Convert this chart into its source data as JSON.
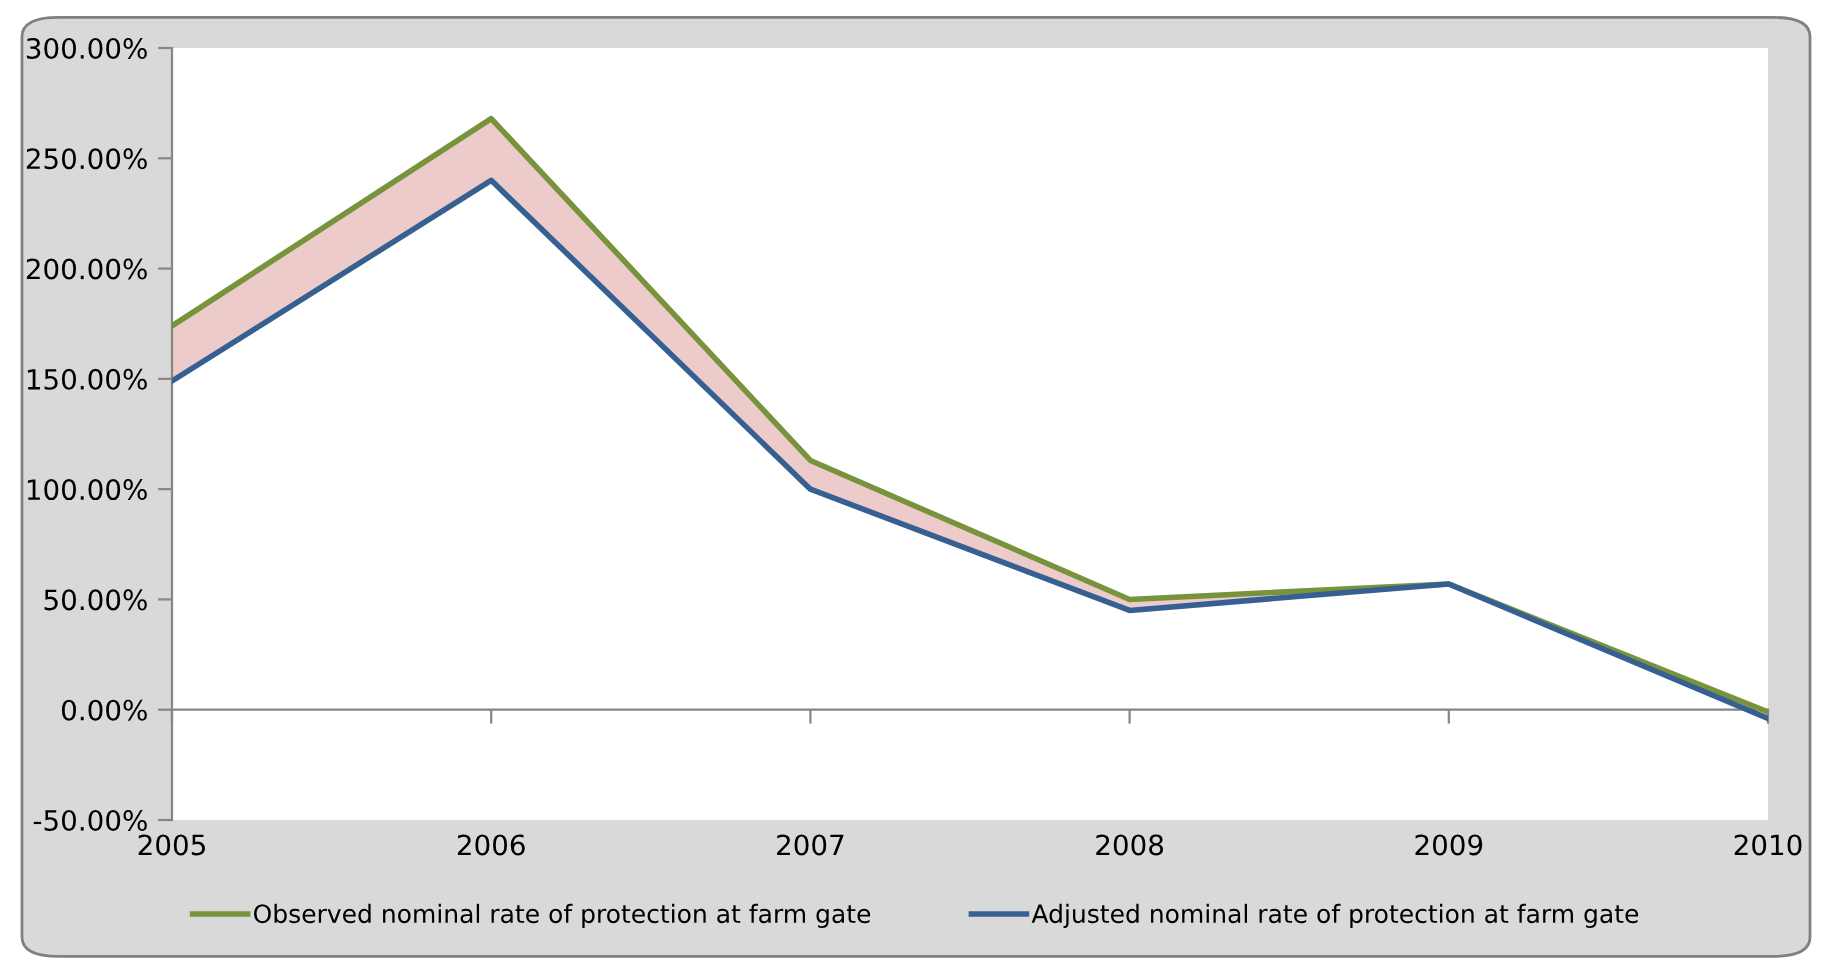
{
  "chart_data": {
    "type": "line",
    "categories": [
      "2005",
      "2006",
      "2007",
      "2008",
      "2009",
      "2010"
    ],
    "series": [
      {
        "name": "Observed nominal rate of protection at farm gate",
        "color": "#77933c",
        "values": [
          174,
          268,
          113,
          50,
          57,
          -1
        ]
      },
      {
        "name": "Adjusted nominal rate of protection at farm gate",
        "color": "#376092",
        "values": [
          149,
          240,
          100,
          45,
          57,
          -4
        ],
        "lower": [
          149,
          240,
          100,
          45,
          57,
          -4
        ],
        "upper": [
          174,
          268,
          113,
          50,
          57,
          -1
        ]
      }
    ],
    "ylim": [
      -50,
      300
    ],
    "yticks": [
      {
        "value": -50,
        "label": "-50.00%"
      },
      {
        "value": 0,
        "label": "0.00%"
      },
      {
        "value": 50,
        "label": "50.00%"
      },
      {
        "value": 100,
        "label": "100.00%"
      },
      {
        "value": 150,
        "label": "150.00%"
      },
      {
        "value": 200,
        "label": "200.00%"
      },
      {
        "value": 250,
        "label": "250.00%"
      },
      {
        "value": 300,
        "label": "300.00%"
      }
    ],
    "legend": "bottom"
  }
}
